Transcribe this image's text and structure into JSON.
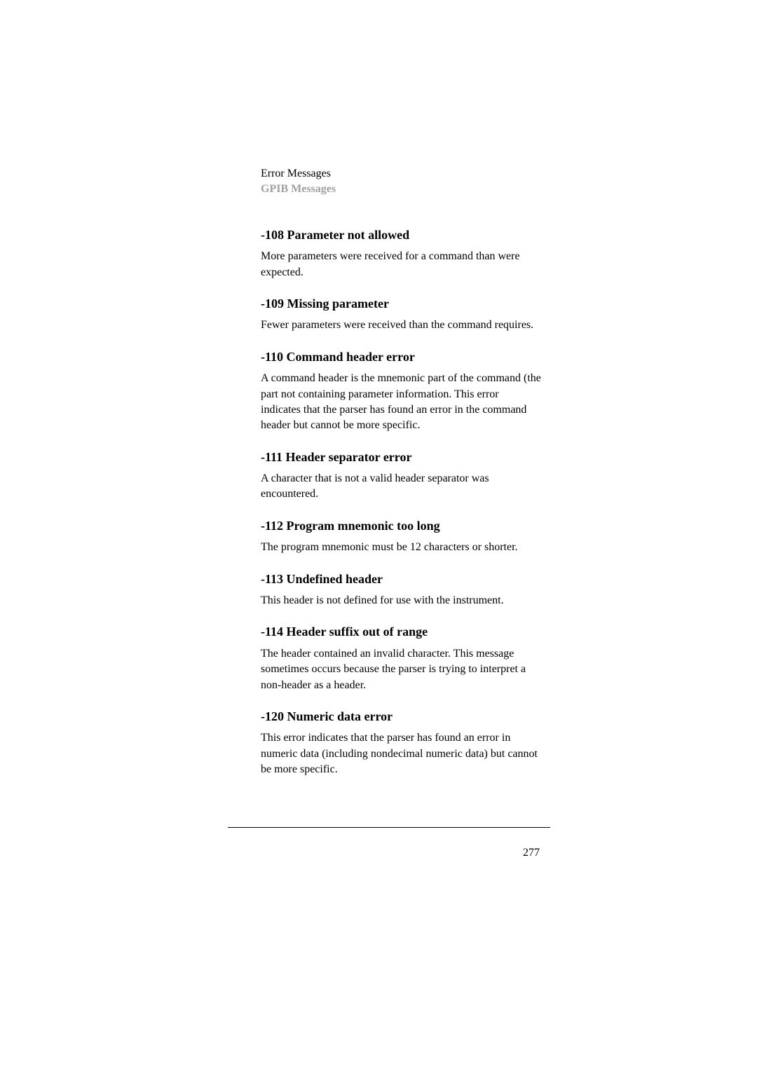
{
  "header": {
    "breadcrumb": "Error Messages",
    "breadcrumb_sub": "GPIB Messages"
  },
  "entries": [
    {
      "title": "-108 Parameter not allowed",
      "body": "More parameters were received for a command than were expected."
    },
    {
      "title": "-109 Missing parameter",
      "body": "Fewer parameters were received than the command requires."
    },
    {
      "title": "-110 Command header error",
      "body": "A command header is the mnemonic part of the command (the part not containing parameter information. This error indicates that the parser has found an error in the command header but cannot be more specific."
    },
    {
      "title": "-111 Header separator error",
      "body": "A character that is not a valid header separator was encountered."
    },
    {
      "title": "-112 Program mnemonic too long",
      "body": "The program mnemonic must be 12 characters or shorter."
    },
    {
      "title": "-113 Undefined header",
      "body": "This header is not defined for use with the instrument."
    },
    {
      "title": "-114 Header suffix out of range",
      "body": "The header contained an invalid character. This message sometimes occurs because the parser is trying to interpret a non-header as a header."
    },
    {
      "title": "-120 Numeric data error",
      "body": "This error indicates that the parser has found an error in numeric data (including nondecimal numeric data) but cannot be more specific."
    }
  ],
  "page_number": "277"
}
